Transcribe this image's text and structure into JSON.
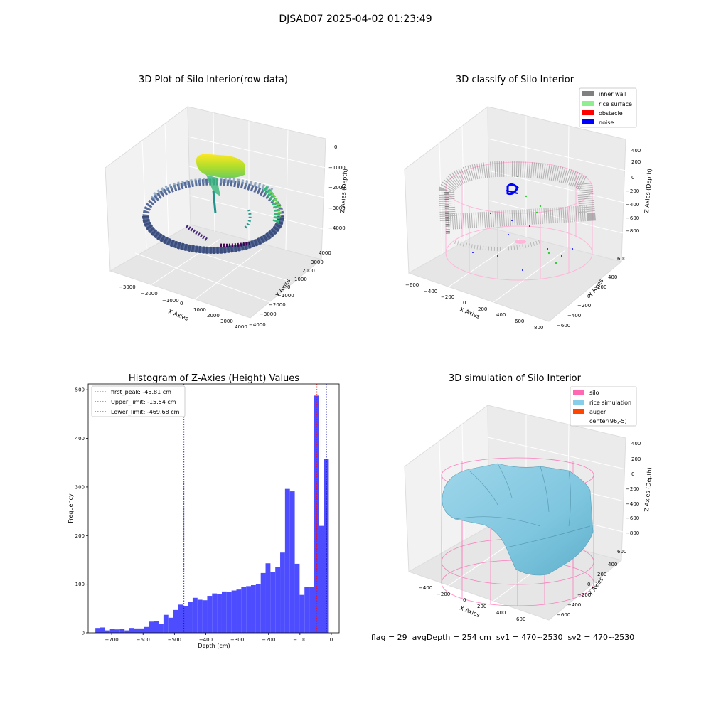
{
  "figure": {
    "suptitle": "DJSAD07 2025-04-02 01:23:49",
    "footer": "flag = 29  avgDepth = 254 cm  sv1 = 470~2530  sv2 = 470~2530"
  },
  "colors": {
    "hist_bar": "#4d4dff",
    "first_peak": "#ff0000",
    "limit_line": "#0000aa",
    "inner_wall": "#808080",
    "rice_surface": "#90ee90",
    "obstacle": "#ff0000",
    "noise": "#0000ff",
    "silo": "#ff69b4",
    "rice_simulation": "#87ceeb",
    "auger": "#ff4500"
  },
  "chart_data": [
    {
      "type": "scatter",
      "title": "3D Plot of Silo Interior(row data)",
      "xlabel": "X Axies",
      "ylabel": "Y Axies",
      "zlabel": "Z Axies (Depth)",
      "xticks": [
        "−3000",
        "−2000",
        "−1000",
        "0",
        "1000",
        "2000",
        "3000",
        "4000"
      ],
      "yticks": [
        "4000",
        "3000",
        "2000",
        "1000",
        "0",
        "−1000",
        "−2000",
        "−3000",
        "−4000"
      ],
      "zticks": [
        "0",
        "−1000",
        "−2000",
        "−3000",
        "−4000"
      ],
      "xlim": [
        -3500,
        4500
      ],
      "ylim": [
        -4000,
        4000
      ],
      "zlim": [
        -4500,
        200
      ],
      "colormap": "viridis",
      "grid": true
    },
    {
      "type": "scatter",
      "title": "3D classify of Silo Interior",
      "xlabel": "X Axies",
      "ylabel": "Y Axies",
      "zlabel": "Z Axies (Depth)",
      "xticks": [
        "−600",
        "−400",
        "−200",
        "0",
        "200",
        "400",
        "600",
        "800"
      ],
      "yticks": [
        "600",
        "400",
        "200",
        "0",
        "−200",
        "−400",
        "−600"
      ],
      "zticks": [
        "400",
        "200",
        "0",
        "−200",
        "−400",
        "−600",
        "−800"
      ],
      "legend": [
        "inner wall",
        "rice surface",
        "obstacle",
        "noise"
      ],
      "legend_position": "top-right",
      "grid": true
    },
    {
      "type": "bar",
      "title": "Histogram of Z-Axies (Height) Values",
      "xlabel": "Depth (cm)",
      "ylabel": "Frequency",
      "xlim": [
        -775,
        25
      ],
      "ylim": [
        0,
        512
      ],
      "xticks": [
        -700,
        -600,
        -500,
        -400,
        -300,
        -200,
        -100,
        0
      ],
      "yticks": [
        0,
        100,
        200,
        300,
        400,
        500
      ],
      "bin_width": 15.5,
      "bins_start": [
        -752,
        -736.5,
        -721,
        -705.5,
        -690,
        -674.5,
        -659,
        -643.5,
        -628,
        -612.5,
        -597,
        -581.5,
        -566,
        -550.5,
        -535,
        -519.5,
        -504,
        -488.5,
        -473,
        -457.5,
        -442,
        -426.5,
        -411,
        -395.5,
        -380,
        -364.5,
        -349,
        -333.5,
        -318,
        -302.5,
        -287,
        -271.5,
        -256,
        -240.5,
        -225,
        -209.5,
        -194,
        -178.5,
        -163,
        -147.5,
        -132,
        -116.5,
        -101,
        -85.5,
        -70,
        -54.5,
        -39,
        -23.5,
        -8
      ],
      "values": [
        10,
        11,
        5,
        8,
        7,
        8,
        5,
        10,
        9,
        9,
        12,
        23,
        24,
        18,
        37,
        31,
        47,
        58,
        55,
        64,
        72,
        68,
        67,
        76,
        81,
        79,
        85,
        84,
        87,
        89,
        95,
        96,
        98,
        100,
        123,
        143,
        125,
        135,
        165,
        296,
        291,
        142,
        78,
        95,
        95,
        488,
        220,
        357,
        0
      ],
      "lines": [
        {
          "label": "first_peak: -45.81 cm",
          "x": -45.81,
          "color": "#ff0000"
        },
        {
          "label": "Upper_limit: -15.54 cm",
          "x": -15.54,
          "color": "#0000aa"
        },
        {
          "label": "Lower_limit: -469.68 cm",
          "x": -469.68,
          "color": "#0000aa"
        }
      ],
      "legend_position": "top-left",
      "grid": false
    },
    {
      "type": "surface",
      "title": "3D simulation of Silo Interior",
      "xlabel": "X Axies",
      "ylabel": "Y Axies",
      "zlabel": "Z Axies (Depth)",
      "xticks": [
        "−400",
        "−200",
        "0",
        "200",
        "400",
        "600"
      ],
      "yticks": [
        "600",
        "400",
        "200",
        "0",
        "−200",
        "−400",
        "−600"
      ],
      "zticks": [
        "400",
        "200",
        "0",
        "−200",
        "−400",
        "−600",
        "−800"
      ],
      "legend": [
        "silo",
        "rice simulation",
        "auger",
        "center(96,-5)"
      ],
      "legend_position": "top-right",
      "grid": true
    }
  ]
}
